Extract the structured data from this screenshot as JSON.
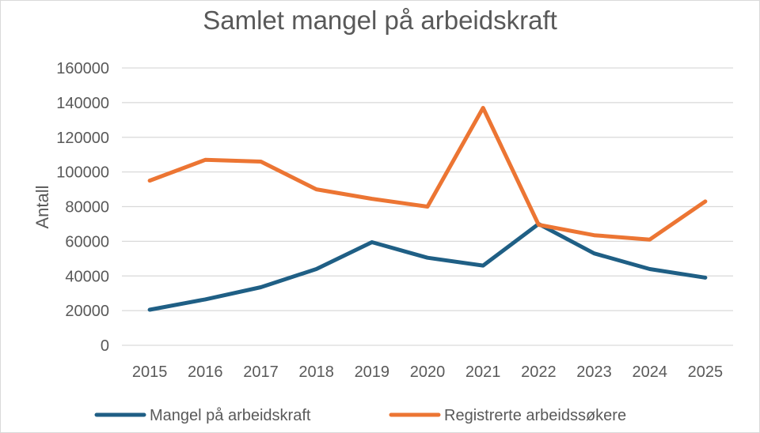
{
  "chart_data": {
    "type": "line",
    "title": "Samlet mangel på arbeidskraft",
    "xlabel": "",
    "ylabel": "Antall",
    "categories": [
      "2015",
      "2016",
      "2017",
      "2018",
      "2019",
      "2020",
      "2021",
      "2022",
      "2023",
      "2024",
      "2025"
    ],
    "ylim": [
      0,
      160000
    ],
    "yticks": [
      "0",
      "20000",
      "40000",
      "60000",
      "80000",
      "100000",
      "120000",
      "140000",
      "160000"
    ],
    "grid": true,
    "legend_position": "bottom",
    "series": [
      {
        "name": "Mangel på arbeidskraft",
        "color": "#1f5f85",
        "values": [
          20500,
          26500,
          33500,
          44000,
          59500,
          50500,
          46000,
          70000,
          53000,
          44000,
          39000
        ]
      },
      {
        "name": "Registrerte arbeidssøkere",
        "color": "#ec7533",
        "values": [
          95000,
          107000,
          106000,
          90000,
          84500,
          80000,
          137000,
          69500,
          63500,
          61000,
          83000
        ]
      }
    ]
  }
}
